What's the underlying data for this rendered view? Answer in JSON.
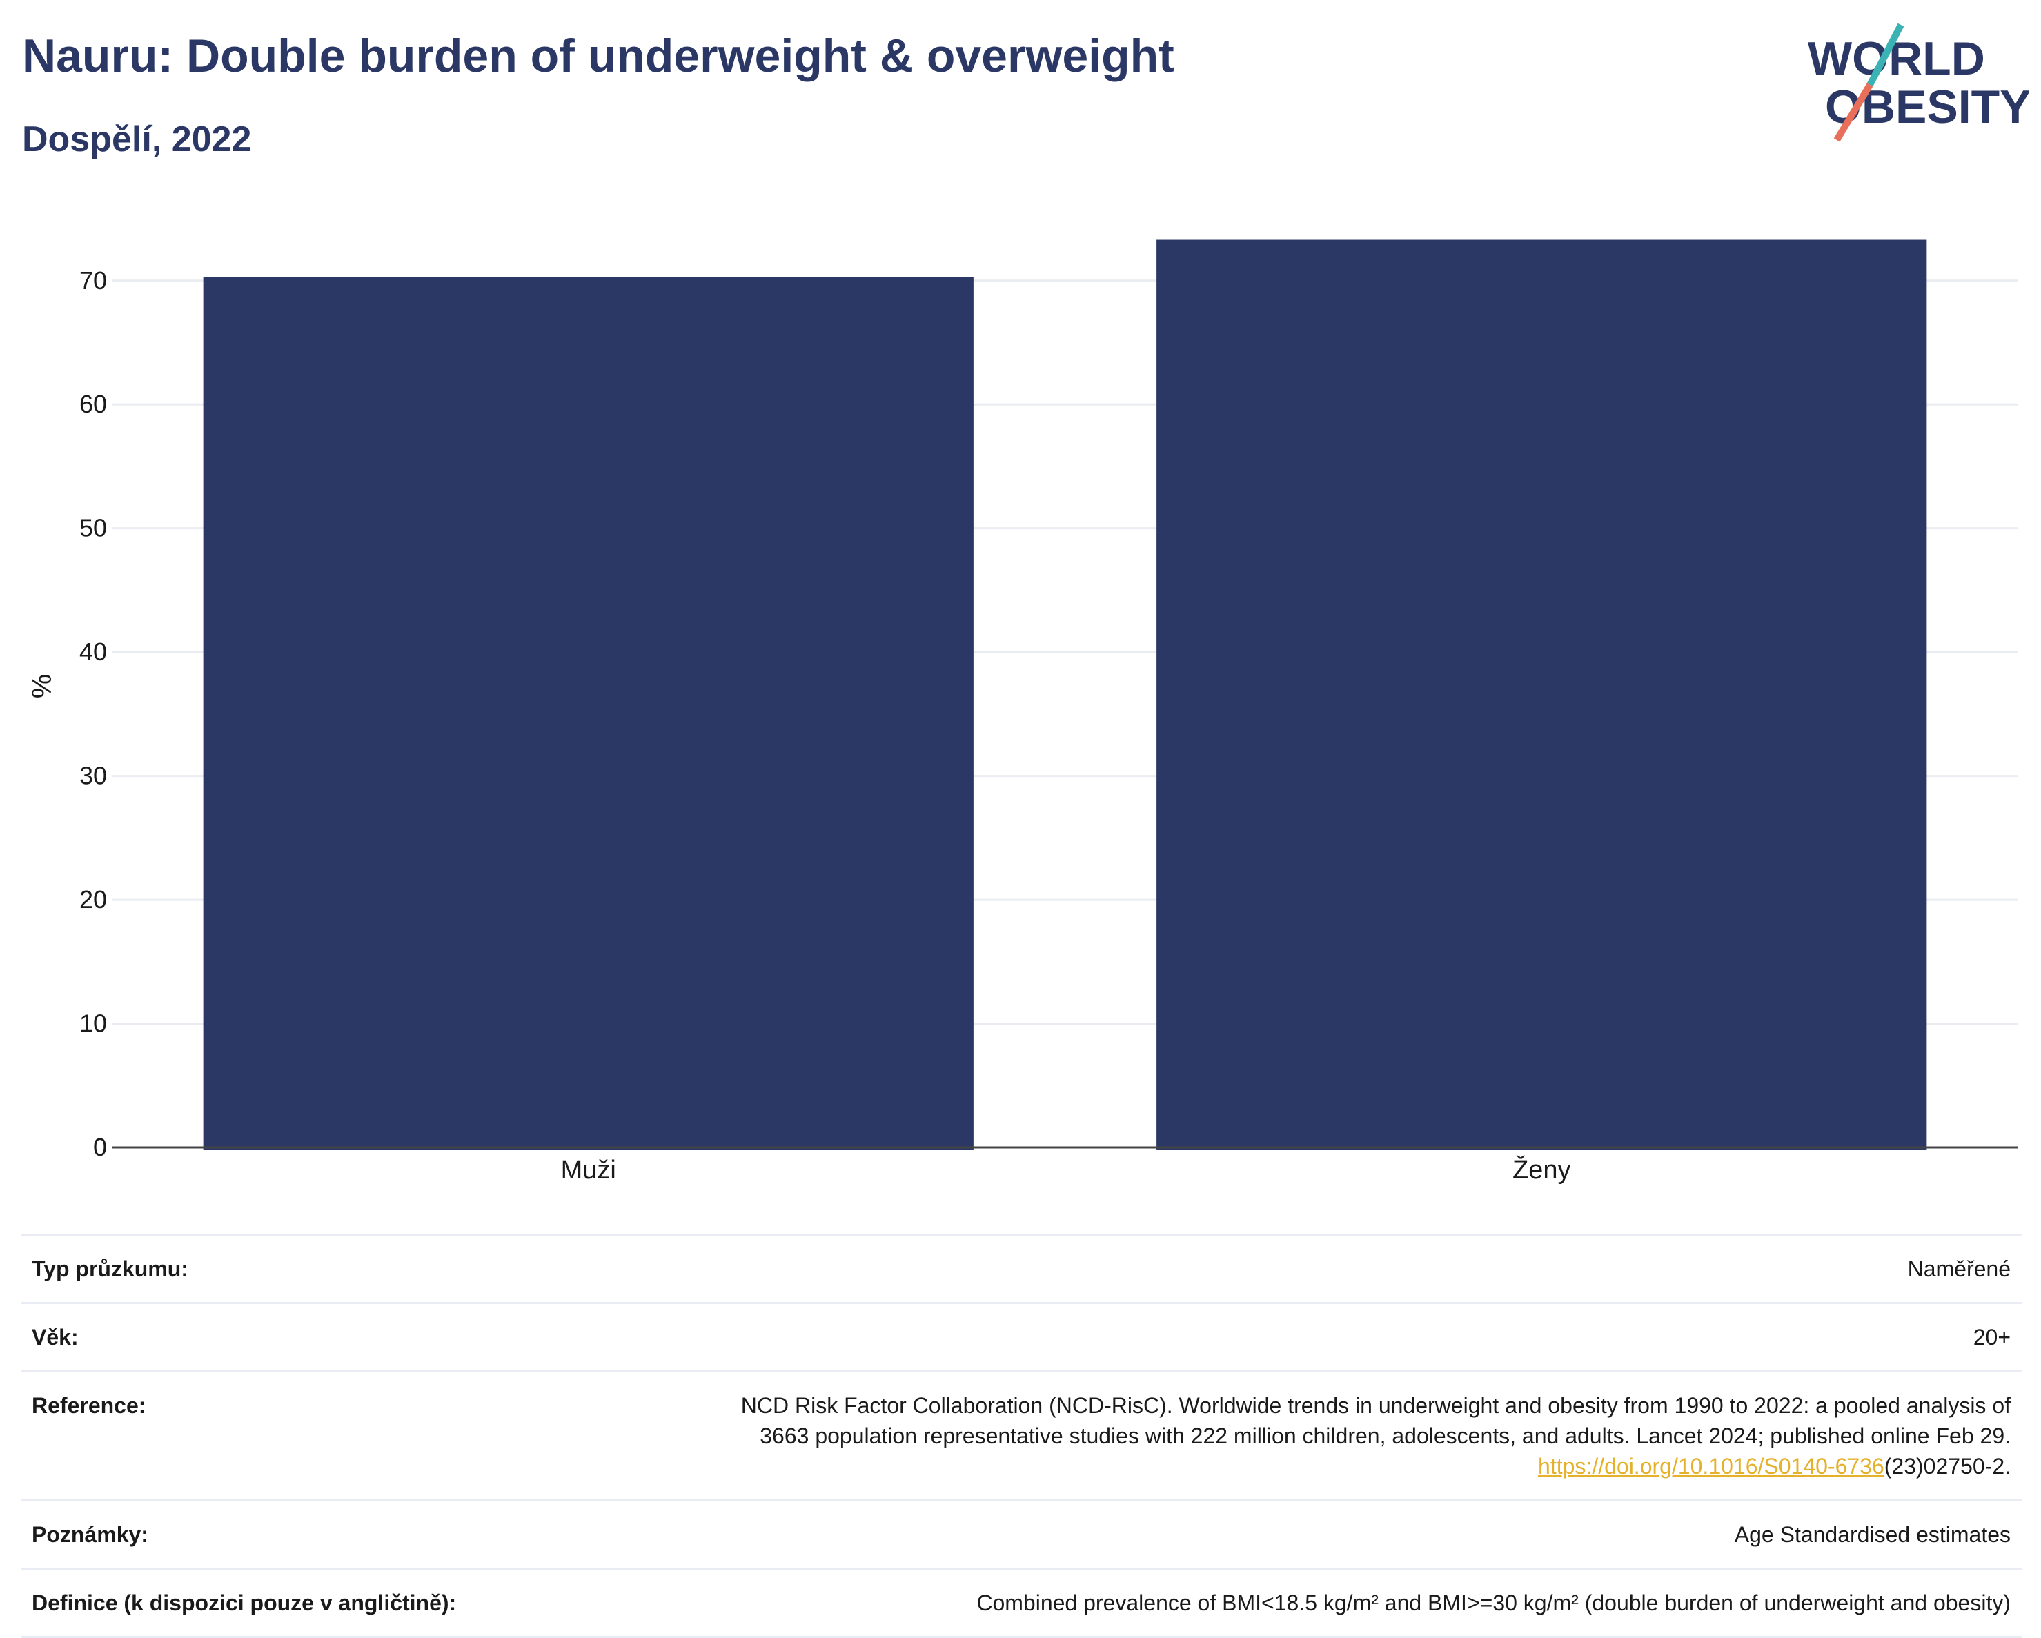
{
  "header": {
    "title": "Nauru: Double burden of underweight & overweight",
    "subtitle": "Dospělí, 2022"
  },
  "logo": {
    "line1": "WORLD",
    "line2": "OBESITY",
    "text_color": "#2b3764",
    "slash_colors": [
      "#3bb3b4",
      "#e8705a"
    ]
  },
  "chart_data": {
    "type": "bar",
    "categories": [
      "Muži",
      "Ženy"
    ],
    "values": [
      70.3,
      73.3
    ],
    "title": "Nauru: Double burden of underweight & overweight",
    "subtitle": "Dospělí, 2022",
    "xlabel": "",
    "ylabel": "%",
    "ylim": [
      0,
      74.5
    ],
    "yticks": [
      0,
      10,
      20,
      30,
      40,
      50,
      60,
      70
    ],
    "grid": true,
    "legend": "none",
    "bar_color": "#2b3764"
  },
  "info": {
    "survey_type": {
      "label": "Typ průzkumu:",
      "value": "Naměřené"
    },
    "age": {
      "label": "Věk:",
      "value": "20+"
    },
    "reference": {
      "label": "Reference:",
      "line1": "NCD Risk Factor Collaboration (NCD-RisC). Worldwide trends in underweight and obesity from 1990 to 2022: a pooled analysis of",
      "line2": "3663 population representative studies with 222 million children, adolescents, and adults. Lancet 2024; published online Feb 29.",
      "link_text": "https://doi.org/10.1016/S0140-6736",
      "link_suffix": "(23)02750-2."
    },
    "notes": {
      "label": "Poznámky:",
      "value": "Age Standardised estimates"
    },
    "definition": {
      "label": "Definice (k dispozici pouze v angličtině):",
      "value": "Combined prevalence of BMI<18.5 kg/m² and BMI>=30 kg/m² (double burden of underweight and obesity)"
    }
  }
}
